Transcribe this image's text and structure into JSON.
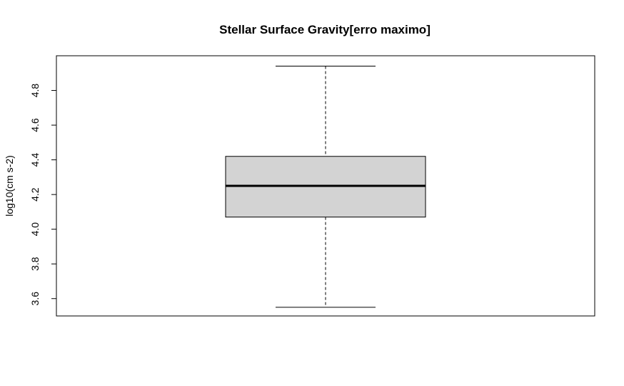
{
  "chart_data": {
    "type": "boxplot",
    "title": "Stellar Surface Gravity[erro maximo]",
    "xlabel": "",
    "ylabel": "log10(cm s-2)",
    "ylim": [
      3.5,
      5.0
    ],
    "yticks": [
      3.6,
      3.8,
      4.0,
      4.2,
      4.4,
      4.6,
      4.8
    ],
    "ytick_labels": [
      "3.6",
      "3.8",
      "4.0",
      "4.2",
      "4.4",
      "4.6",
      "4.8"
    ],
    "grid": false,
    "series": [
      {
        "name": "Stellar Surface Gravity",
        "min": 3.55,
        "q1": 4.07,
        "median": 4.25,
        "q3": 4.42,
        "max": 4.94
      }
    ],
    "colors": {
      "box_fill": "#d3d3d3",
      "stroke": "#000000"
    }
  }
}
